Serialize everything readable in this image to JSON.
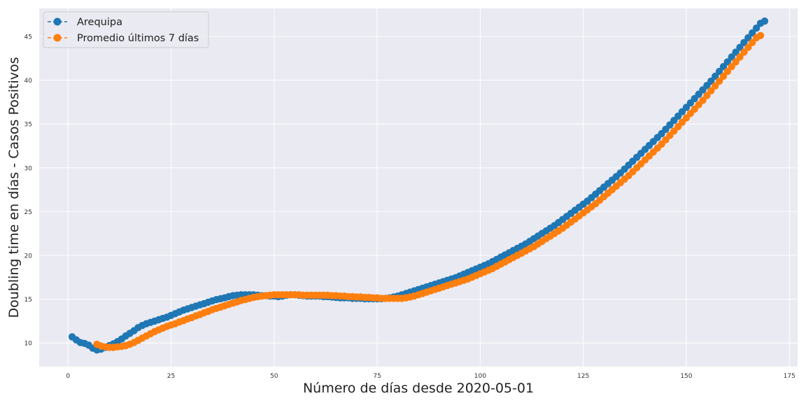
{
  "chart_data": {
    "type": "line",
    "title": "",
    "xlabel": "Número de días desde 2020-05-01",
    "ylabel": "Doubling time en días - Casos Positivos",
    "xlim": [
      -7,
      177
    ],
    "ylim": [
      7.3,
      48.2
    ],
    "xticks": [
      0,
      25,
      50,
      75,
      100,
      125,
      150,
      175
    ],
    "yticks": [
      10,
      15,
      20,
      25,
      30,
      35,
      40,
      45
    ],
    "grid": true,
    "legend_position": "top-left",
    "x_start": 1,
    "series": [
      {
        "name": "Arequipa",
        "color": "#1f77b4",
        "marker": "circle",
        "linestyle": "dashed",
        "values": [
          10.7,
          10.35,
          10.05,
          9.95,
          9.75,
          9.4,
          9.2,
          9.3,
          9.5,
          9.7,
          9.9,
          10.15,
          10.45,
          10.8,
          11.1,
          11.4,
          11.75,
          12.0,
          12.2,
          12.35,
          12.5,
          12.65,
          12.8,
          12.95,
          13.15,
          13.35,
          13.55,
          13.75,
          13.9,
          14.05,
          14.2,
          14.35,
          14.5,
          14.65,
          14.8,
          14.95,
          15.05,
          15.15,
          15.3,
          15.4,
          15.45,
          15.5,
          15.5,
          15.5,
          15.5,
          15.45,
          15.4,
          15.4,
          15.35,
          15.35,
          15.3,
          15.35,
          15.45,
          15.5,
          15.5,
          15.45,
          15.4,
          15.35,
          15.35,
          15.35,
          15.35,
          15.3,
          15.3,
          15.25,
          15.2,
          15.15,
          15.15,
          15.15,
          15.1,
          15.1,
          15.1,
          15.05,
          15.05,
          15.05,
          15.05,
          15.05,
          15.1,
          15.15,
          15.25,
          15.35,
          15.5,
          15.65,
          15.8,
          15.95,
          16.1,
          16.25,
          16.4,
          16.55,
          16.7,
          16.85,
          17.0,
          17.15,
          17.3,
          17.45,
          17.65,
          17.85,
          18.05,
          18.25,
          18.45,
          18.65,
          18.85,
          19.05,
          19.3,
          19.55,
          19.8,
          20.05,
          20.3,
          20.55,
          20.8,
          21.05,
          21.3,
          21.6,
          21.9,
          22.2,
          22.5,
          22.8,
          23.1,
          23.4,
          23.75,
          24.1,
          24.45,
          24.8,
          25.15,
          25.5,
          25.85,
          26.2,
          26.6,
          27.0,
          27.4,
          27.8,
          28.2,
          28.6,
          29.0,
          29.4,
          29.85,
          30.3,
          30.75,
          31.2,
          31.65,
          32.1,
          32.55,
          33.0,
          33.45,
          33.9,
          34.4,
          34.9,
          35.4,
          35.9,
          36.4,
          36.9,
          37.4,
          37.9,
          38.4,
          38.9,
          39.4,
          39.9,
          40.45,
          41.0,
          41.55,
          42.1,
          42.65,
          43.2,
          43.75,
          44.3,
          44.85,
          45.4,
          45.95,
          46.5,
          46.75
        ]
      },
      {
        "name": "Promedio últimos 7 días",
        "color": "#ff7f0e",
        "marker": "circle",
        "linestyle": "dashed",
        "x_start": 7,
        "values": [
          9.85,
          9.65,
          9.55,
          9.5,
          9.5,
          9.55,
          9.6,
          9.7,
          9.85,
          10.05,
          10.3,
          10.55,
          10.8,
          11.05,
          11.3,
          11.5,
          11.7,
          11.9,
          12.05,
          12.2,
          12.4,
          12.55,
          12.75,
          12.9,
          13.1,
          13.25,
          13.45,
          13.6,
          13.8,
          13.95,
          14.1,
          14.25,
          14.4,
          14.55,
          14.7,
          14.85,
          14.95,
          15.1,
          15.2,
          15.3,
          15.35,
          15.4,
          15.45,
          15.5,
          15.5,
          15.5,
          15.5,
          15.5,
          15.5,
          15.5,
          15.45,
          15.45,
          15.45,
          15.45,
          15.45,
          15.45,
          15.45,
          15.4,
          15.4,
          15.35,
          15.35,
          15.3,
          15.3,
          15.25,
          15.25,
          15.2,
          15.2,
          15.15,
          15.15,
          15.1,
          15.1,
          15.1,
          15.1,
          15.1,
          15.1,
          15.15,
          15.25,
          15.35,
          15.5,
          15.65,
          15.8,
          15.95,
          16.1,
          16.25,
          16.4,
          16.55,
          16.7,
          16.85,
          17.0,
          17.15,
          17.3,
          17.5,
          17.7,
          17.9,
          18.1,
          18.3,
          18.5,
          18.75,
          19.0,
          19.25,
          19.5,
          19.75,
          20.0,
          20.25,
          20.5,
          20.75,
          21.0,
          21.3,
          21.6,
          21.9,
          22.2,
          22.5,
          22.8,
          23.1,
          23.45,
          23.8,
          24.15,
          24.5,
          24.85,
          25.2,
          25.55,
          25.9,
          26.3,
          26.7,
          27.1,
          27.5,
          27.9,
          28.3,
          28.7,
          29.1,
          29.55,
          30.0,
          30.45,
          30.9,
          31.35,
          31.8,
          32.25,
          32.7,
          33.2,
          33.7,
          34.2,
          34.7,
          35.2,
          35.7,
          36.2,
          36.7,
          37.2,
          37.7,
          38.25,
          38.8,
          39.35,
          39.9,
          40.45,
          41.0,
          41.55,
          42.1,
          42.65,
          43.2,
          43.75,
          44.3,
          44.85,
          45.1
        ]
      }
    ]
  }
}
